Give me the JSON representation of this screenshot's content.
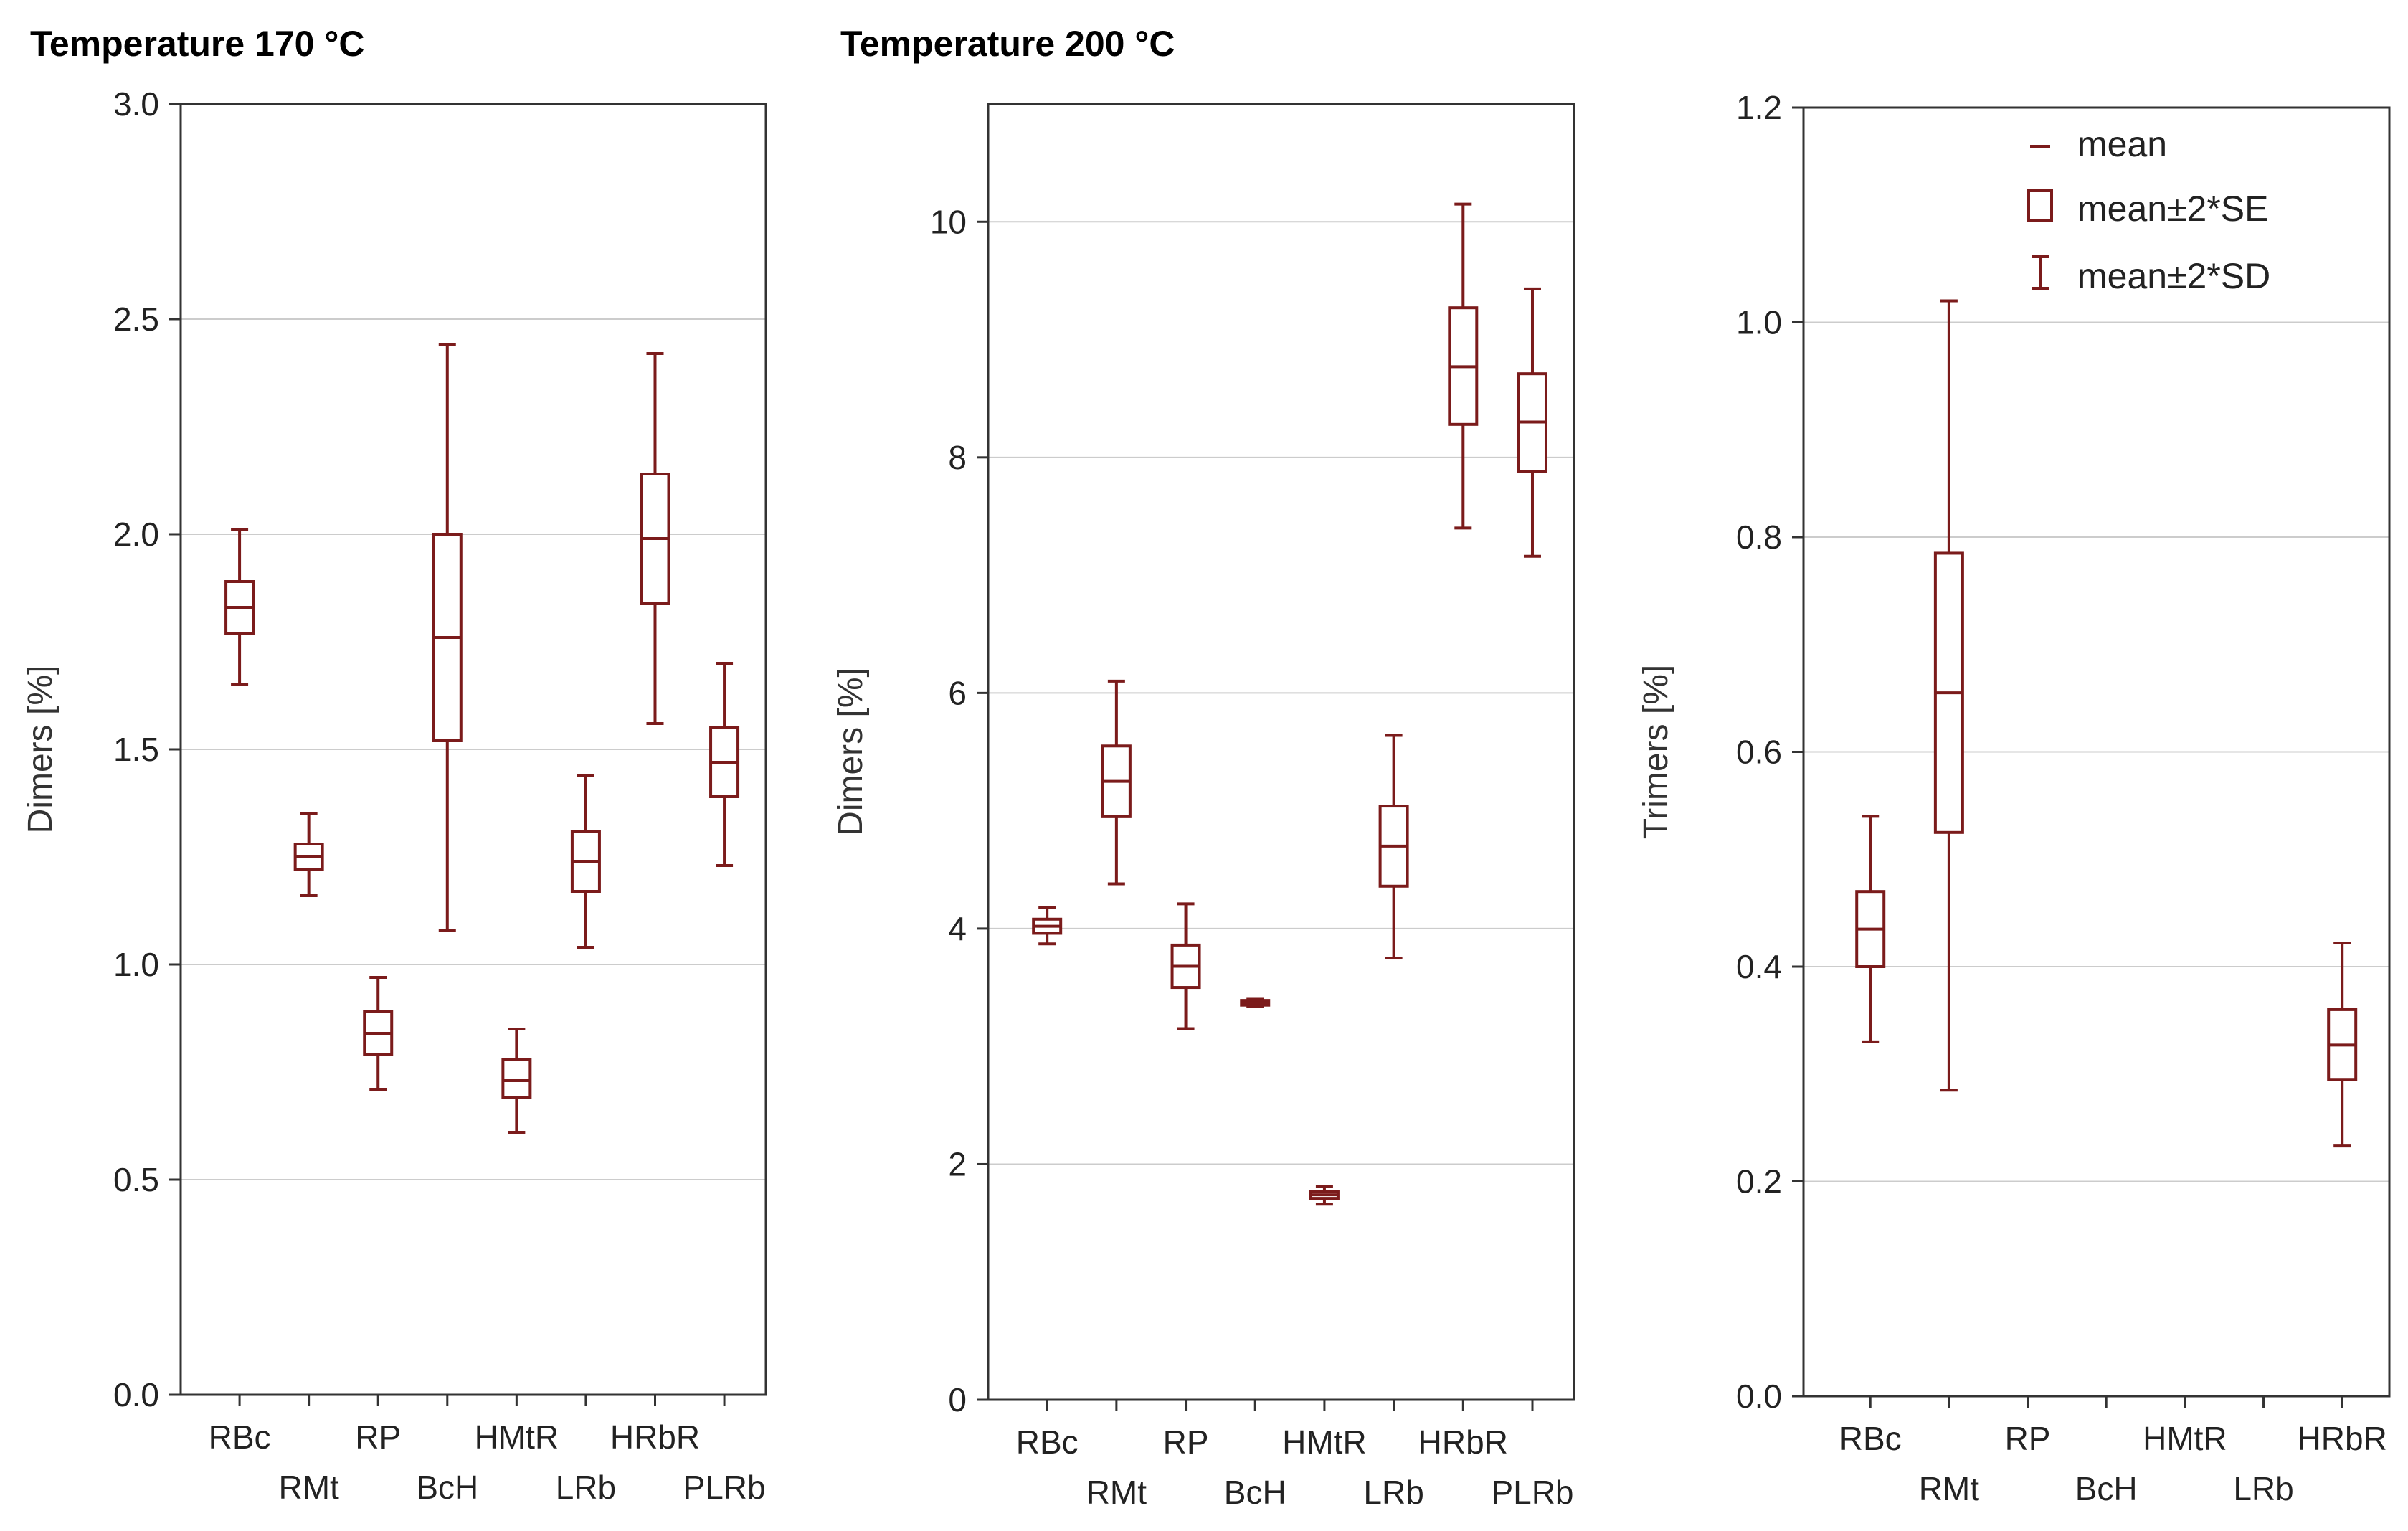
{
  "colors": {
    "box": "#7b1b1b",
    "grid": "#cccccc",
    "frame": "#333333",
    "text": "#222222"
  },
  "legend": {
    "mean": "mean",
    "se": "mean±2*SE",
    "sd": "mean±2*SD"
  },
  "chart_data": [
    {
      "type": "box",
      "title": "Temperature 170 °C",
      "xlabel": "",
      "ylabel": "Dimers [%]",
      "ylim": [
        0,
        3.0
      ],
      "yticks": [
        "0.0",
        "0.5",
        "1.0",
        "1.5",
        "2.0",
        "2.5",
        "3.0"
      ],
      "ytick_values": [
        0,
        0.5,
        1.0,
        1.5,
        2.0,
        2.5,
        3.0
      ],
      "grid": true,
      "categories": [
        "RBc",
        "RMt",
        "RP",
        "BcH",
        "HMtR",
        "LRb",
        "HRbR",
        "PLRb"
      ],
      "boxes": [
        {
          "category": "RBc",
          "mean": 1.83,
          "se_low": 1.77,
          "se_high": 1.89,
          "sd_low": 1.65,
          "sd_high": 2.01
        },
        {
          "category": "RMt",
          "mean": 1.25,
          "se_low": 1.22,
          "se_high": 1.28,
          "sd_low": 1.16,
          "sd_high": 1.35
        },
        {
          "category": "RP",
          "mean": 0.84,
          "se_low": 0.79,
          "se_high": 0.89,
          "sd_low": 0.71,
          "sd_high": 0.97
        },
        {
          "category": "BcH",
          "mean": 1.76,
          "se_low": 1.52,
          "se_high": 2.0,
          "sd_low": 1.08,
          "sd_high": 2.44
        },
        {
          "category": "HMtR",
          "mean": 0.73,
          "se_low": 0.69,
          "se_high": 0.78,
          "sd_low": 0.61,
          "sd_high": 0.85
        },
        {
          "category": "LRb",
          "mean": 1.24,
          "se_low": 1.17,
          "se_high": 1.31,
          "sd_low": 1.04,
          "sd_high": 1.44
        },
        {
          "category": "HRbR",
          "mean": 1.99,
          "se_low": 1.84,
          "se_high": 2.14,
          "sd_low": 1.56,
          "sd_high": 2.42
        },
        {
          "category": "PLRb",
          "mean": 1.47,
          "se_low": 1.39,
          "se_high": 1.55,
          "sd_low": 1.23,
          "sd_high": 1.7
        }
      ]
    },
    {
      "type": "box",
      "title": "Temperature 200 °C",
      "xlabel": "",
      "ylabel": "Dimers [%]",
      "ylim": [
        0,
        11
      ],
      "yticks": [
        "0",
        "2",
        "4",
        "6",
        "8",
        "10"
      ],
      "ytick_values": [
        0,
        2,
        4,
        6,
        8,
        10
      ],
      "grid": true,
      "categories": [
        "RBc",
        "RMt",
        "RP",
        "BcH",
        "HMtR",
        "LRb",
        "HRbR",
        "PLRb"
      ],
      "boxes": [
        {
          "category": "RBc",
          "mean": 4.02,
          "se_low": 3.96,
          "se_high": 4.08,
          "sd_low": 3.87,
          "sd_high": 4.18
        },
        {
          "category": "RMt",
          "mean": 5.25,
          "se_low": 4.95,
          "se_high": 5.55,
          "sd_low": 4.38,
          "sd_high": 6.1
        },
        {
          "category": "RP",
          "mean": 3.68,
          "se_low": 3.5,
          "se_high": 3.86,
          "sd_low": 3.15,
          "sd_high": 4.21
        },
        {
          "category": "BcH",
          "mean": 3.37,
          "se_low": 3.35,
          "se_high": 3.39,
          "sd_low": 3.34,
          "sd_high": 3.4
        },
        {
          "category": "HMtR",
          "mean": 1.74,
          "se_low": 1.71,
          "se_high": 1.77,
          "sd_low": 1.66,
          "sd_high": 1.81
        },
        {
          "category": "LRb",
          "mean": 4.7,
          "se_low": 4.36,
          "se_high": 5.04,
          "sd_low": 3.75,
          "sd_high": 5.64
        },
        {
          "category": "HRbR",
          "mean": 8.77,
          "se_low": 8.28,
          "se_high": 9.27,
          "sd_low": 7.4,
          "sd_high": 10.15
        },
        {
          "category": "PLRb",
          "mean": 8.3,
          "se_low": 7.88,
          "se_high": 8.71,
          "sd_low": 7.16,
          "sd_high": 9.43
        }
      ]
    },
    {
      "type": "box",
      "title": "",
      "xlabel": "",
      "ylabel": "Trimers [%]",
      "ylim": [
        0,
        1.2
      ],
      "yticks": [
        "0.0",
        "0.2",
        "0.4",
        "0.6",
        "0.8",
        "1.0",
        "1.2"
      ],
      "ytick_values": [
        0,
        0.2,
        0.4,
        0.6,
        0.8,
        1.0,
        1.2
      ],
      "grid": true,
      "legend_position": "top-right",
      "categories": [
        "RBc",
        "RMt",
        "RP",
        "BcH",
        "HMtR",
        "LRb",
        "HRbR"
      ],
      "boxes": [
        {
          "category": "RBc",
          "mean": 0.435,
          "se_low": 0.4,
          "se_high": 0.47,
          "sd_low": 0.33,
          "sd_high": 0.54
        },
        {
          "category": "RMt",
          "mean": 0.655,
          "se_low": 0.525,
          "se_high": 0.785,
          "sd_low": 0.285,
          "sd_high": 1.02
        },
        {
          "category": "HRbR",
          "mean": 0.327,
          "se_low": 0.295,
          "se_high": 0.36,
          "sd_low": 0.233,
          "sd_high": 0.422
        }
      ]
    }
  ]
}
